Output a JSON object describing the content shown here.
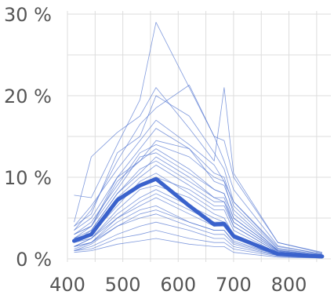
{
  "chart_data": {
    "type": "line",
    "title": "",
    "xlabel": "",
    "ylabel": "",
    "xlim": [
      400,
      870
    ],
    "ylim": [
      0,
      30
    ],
    "grid": true,
    "x_ticks": [
      400,
      500,
      600,
      700,
      800
    ],
    "y_ticks": [
      0,
      10,
      20,
      30
    ],
    "x_tick_labels": [
      "400",
      "500",
      "600",
      "700",
      "800"
    ],
    "y_tick_labels": [
      "0 %",
      "10 %",
      "20 %",
      "30 %"
    ],
    "x_minor_grid": [
      450,
      550,
      650,
      750,
      850
    ],
    "y_minor_grid": [
      5,
      15,
      25
    ],
    "colors": {
      "series": "#4a6fcf",
      "mean": "#3a62cc",
      "grid": "#dddddd"
    },
    "x": [
      412,
      443,
      490,
      531,
      560,
      620,
      665,
      683,
      700,
      780,
      860
    ],
    "series": [
      {
        "values": [
          7.8,
          7.5,
          14.0,
          19.5,
          29.0,
          21.0,
          15.0,
          14.5,
          10.0,
          2.0,
          0.7
        ]
      },
      {
        "values": [
          4.5,
          12.5,
          15.5,
          17.5,
          21.0,
          16.0,
          12.0,
          21.0,
          10.5,
          2.0,
          0.8
        ]
      },
      {
        "values": [
          4.0,
          5.5,
          13.0,
          15.0,
          20.0,
          17.5,
          13.0,
          11.0,
          7.0,
          1.5,
          0.6
        ]
      },
      {
        "values": [
          3.5,
          6.0,
          12.0,
          16.5,
          18.5,
          21.3,
          15.0,
          12.0,
          8.5,
          1.6,
          0.6
        ]
      },
      {
        "values": [
          4.0,
          6.5,
          11.0,
          14.5,
          17.0,
          14.0,
          11.5,
          9.5,
          7.0,
          1.3,
          0.5
        ]
      },
      {
        "values": [
          3.5,
          5.0,
          10.0,
          13.5,
          16.0,
          13.5,
          10.5,
          10.0,
          6.5,
          1.2,
          0.5
        ]
      },
      {
        "values": [
          3.0,
          4.5,
          9.0,
          13.0,
          14.0,
          12.5,
          10.0,
          9.5,
          5.5,
          1.1,
          0.4
        ]
      },
      {
        "values": [
          3.0,
          4.0,
          10.0,
          12.0,
          14.5,
          13.5,
          9.5,
          9.0,
          6.0,
          1.0,
          0.4
        ]
      },
      {
        "values": [
          2.5,
          4.0,
          8.5,
          12.5,
          13.0,
          10.5,
          8.5,
          8.0,
          5.0,
          1.0,
          0.4
        ]
      },
      {
        "values": [
          2.5,
          3.5,
          8.0,
          11.0,
          12.0,
          9.5,
          7.5,
          7.5,
          4.5,
          0.9,
          0.3
        ]
      },
      {
        "values": [
          2.0,
          3.0,
          7.5,
          10.0,
          11.5,
          9.0,
          7.0,
          7.0,
          4.0,
          0.8,
          0.3
        ]
      },
      {
        "values": [
          2.0,
          3.0,
          6.5,
          9.5,
          10.5,
          8.0,
          6.0,
          6.0,
          3.5,
          0.7,
          0.3
        ]
      },
      {
        "values": [
          2.0,
          2.5,
          6.0,
          8.5,
          9.0,
          7.5,
          5.5,
          5.0,
          3.0,
          0.6,
          0.2
        ]
      },
      {
        "values": [
          1.5,
          2.5,
          5.5,
          7.5,
          8.5,
          6.5,
          5.0,
          4.5,
          3.0,
          0.6,
          0.2
        ]
      },
      {
        "values": [
          1.5,
          2.0,
          5.0,
          6.5,
          7.5,
          5.5,
          4.0,
          4.0,
          2.5,
          0.5,
          0.2
        ]
      },
      {
        "values": [
          1.5,
          2.0,
          4.5,
          6.0,
          6.5,
          4.5,
          3.5,
          3.5,
          2.0,
          0.5,
          0.2
        ]
      },
      {
        "values": [
          1.0,
          1.8,
          4.0,
          5.0,
          5.5,
          4.0,
          3.0,
          3.0,
          1.8,
          0.4,
          0.2
        ]
      },
      {
        "values": [
          1.0,
          1.5,
          3.0,
          4.0,
          4.5,
          3.5,
          2.5,
          2.5,
          1.5,
          0.4,
          0.1
        ]
      },
      {
        "values": [
          1.0,
          1.2,
          2.5,
          3.0,
          3.5,
          2.5,
          2.0,
          2.0,
          1.2,
          0.3,
          0.1
        ]
      },
      {
        "values": [
          0.8,
          1.0,
          1.8,
          2.2,
          2.5,
          1.8,
          1.5,
          1.5,
          0.8,
          0.2,
          0.1
        ]
      },
      {
        "values": [
          3.0,
          4.0,
          9.5,
          12.0,
          13.5,
          11.0,
          8.5,
          8.0,
          5.0,
          1.0,
          0.4
        ]
      },
      {
        "values": [
          2.5,
          3.0,
          7.0,
          9.0,
          10.0,
          8.5,
          6.5,
          6.5,
          4.0,
          0.8,
          0.3
        ]
      },
      {
        "values": [
          1.5,
          2.5,
          5.0,
          7.0,
          8.0,
          6.0,
          4.5,
          4.5,
          2.8,
          0.6,
          0.2
        ]
      },
      {
        "values": [
          1.2,
          2.0,
          4.0,
          5.5,
          6.0,
          4.5,
          3.5,
          3.5,
          2.2,
          0.5,
          0.2
        ]
      },
      {
        "values": [
          2.0,
          3.5,
          8.0,
          10.5,
          12.5,
          10.0,
          7.5,
          7.0,
          4.5,
          0.9,
          0.3
        ]
      }
    ],
    "mean": {
      "values": [
        2.2,
        3.0,
        7.2,
        9.0,
        9.8,
        6.5,
        4.2,
        4.3,
        2.8,
        0.6,
        0.3
      ]
    }
  }
}
